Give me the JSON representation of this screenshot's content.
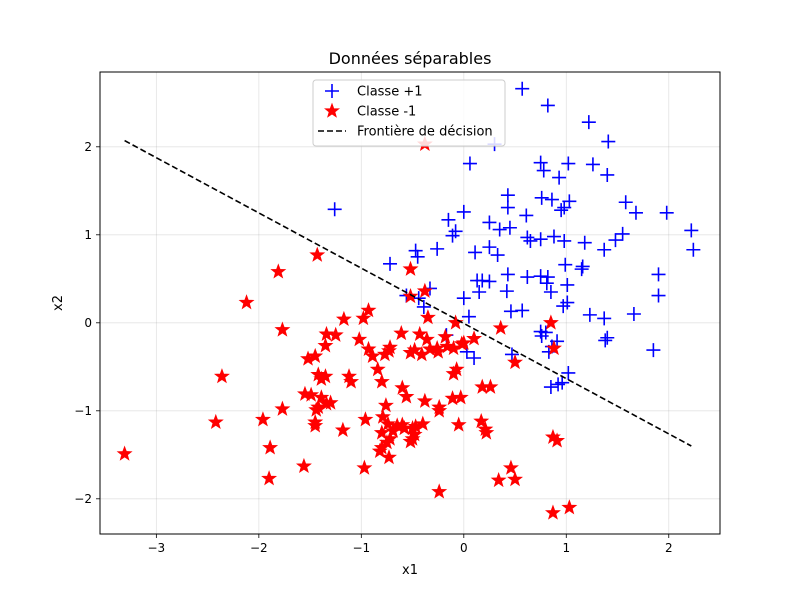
{
  "chart_data": {
    "type": "scatter",
    "title": "Données séparables",
    "xlabel": "x1",
    "ylabel": "x2",
    "xlim": [
      -3.55,
      2.5
    ],
    "ylim": [
      -2.4,
      2.85
    ],
    "grid": true,
    "legend_position": "top-center",
    "x_ticks": [
      -3,
      -2,
      -1,
      0,
      1,
      2
    ],
    "y_ticks": [
      -2,
      -1,
      0,
      1,
      2
    ],
    "x_tick_labels": [
      "−3",
      "−2",
      "−1",
      "0",
      "1",
      "2"
    ],
    "y_tick_labels": [
      "−2",
      "−1",
      "0",
      "1",
      "2"
    ],
    "series": [
      {
        "name": "Classe +1",
        "marker": "plus",
        "color": "#0000ff",
        "points": [
          [
            0.57,
            2.66
          ],
          [
            0.82,
            2.47
          ],
          [
            1.22,
            2.28
          ],
          [
            0.3,
            2.03
          ],
          [
            1.41,
            2.06
          ],
          [
            0.75,
            1.82
          ],
          [
            1.02,
            1.81
          ],
          [
            1.26,
            1.8
          ],
          [
            0.06,
            1.81
          ],
          [
            0.78,
            1.73
          ],
          [
            1.4,
            1.68
          ],
          [
            0.93,
            1.65
          ],
          [
            -1.26,
            1.29
          ],
          [
            0.43,
            1.45
          ],
          [
            0.76,
            1.42
          ],
          [
            0.86,
            1.4
          ],
          [
            1.03,
            1.38
          ],
          [
            1.58,
            1.37
          ],
          [
            0.43,
            1.31
          ],
          [
            0.95,
            1.28
          ],
          [
            0.0,
            1.26
          ],
          [
            1.68,
            1.25
          ],
          [
            1.98,
            1.25
          ],
          [
            0.61,
            1.22
          ],
          [
            0.98,
            1.31
          ],
          [
            -0.15,
            1.17
          ],
          [
            0.25,
            1.14
          ],
          [
            0.35,
            1.06
          ],
          [
            0.45,
            1.08
          ],
          [
            -0.08,
            1.04
          ],
          [
            2.22,
            1.05
          ],
          [
            -0.11,
            0.99
          ],
          [
            0.62,
            0.97
          ],
          [
            0.65,
            0.93
          ],
          [
            0.75,
            0.95
          ],
          [
            0.88,
            0.98
          ],
          [
            0.98,
            0.93
          ],
          [
            1.18,
            0.91
          ],
          [
            1.37,
            0.83
          ],
          [
            1.48,
            0.94
          ],
          [
            1.55,
            1.01
          ],
          [
            -0.26,
            0.84
          ],
          [
            -0.47,
            0.82
          ],
          [
            -0.45,
            0.75
          ],
          [
            0.11,
            0.8
          ],
          [
            0.25,
            0.86
          ],
          [
            0.33,
            0.77
          ],
          [
            -0.72,
            0.67
          ],
          [
            0.75,
            0.53
          ],
          [
            0.82,
            0.52
          ],
          [
            0.62,
            0.52
          ],
          [
            0.99,
            0.66
          ],
          [
            1.15,
            0.61
          ],
          [
            1.16,
            0.64
          ],
          [
            1.9,
            0.55
          ],
          [
            2.24,
            0.83
          ],
          [
            0.13,
            0.48
          ],
          [
            0.18,
            0.48
          ],
          [
            0.25,
            0.47
          ],
          [
            0.43,
            0.55
          ],
          [
            0.81,
            0.45
          ],
          [
            1.01,
            0.43
          ],
          [
            0.42,
            0.36
          ],
          [
            0.85,
            0.35
          ],
          [
            1.01,
            0.23
          ],
          [
            -0.56,
            0.31
          ],
          [
            -0.44,
            0.28
          ],
          [
            -0.33,
            0.39
          ],
          [
            -0.39,
            0.18
          ],
          [
            0.0,
            0.28
          ],
          [
            0.15,
            0.35
          ],
          [
            1.9,
            0.31
          ],
          [
            0.46,
            0.13
          ],
          [
            0.57,
            0.14
          ],
          [
            0.97,
            0.19
          ],
          [
            1.23,
            0.09
          ],
          [
            1.37,
            0.05
          ],
          [
            1.66,
            0.1
          ],
          [
            0.05,
            0.07
          ],
          [
            0.75,
            -0.1
          ],
          [
            0.8,
            -0.11
          ],
          [
            0.76,
            -0.15
          ],
          [
            0.91,
            -0.21
          ],
          [
            0.86,
            -0.27
          ],
          [
            1.4,
            -0.17
          ],
          [
            1.38,
            -0.2
          ],
          [
            -0.17,
            -0.14
          ],
          [
            0.03,
            -0.33
          ],
          [
            0.1,
            -0.4
          ],
          [
            0.47,
            -0.36
          ],
          [
            0.83,
            -0.33
          ],
          [
            1.85,
            -0.31
          ],
          [
            1.02,
            -0.57
          ],
          [
            0.96,
            -0.68
          ],
          [
            0.92,
            -0.7
          ],
          [
            0.85,
            -0.73
          ]
        ]
      },
      {
        "name": "Classe -1",
        "marker": "star",
        "color": "#ff0000",
        "points": [
          [
            -0.38,
            2.03
          ],
          [
            -1.43,
            0.77
          ],
          [
            -1.81,
            0.58
          ],
          [
            -0.52,
            0.61
          ],
          [
            -2.12,
            0.23
          ],
          [
            -0.52,
            0.3
          ],
          [
            -0.38,
            0.36
          ],
          [
            -0.35,
            0.06
          ],
          [
            -0.93,
            0.14
          ],
          [
            -1.17,
            0.04
          ],
          [
            -1.77,
            -0.08
          ],
          [
            -0.98,
            0.05
          ],
          [
            -0.08,
            0.0
          ],
          [
            0.36,
            -0.06
          ],
          [
            -1.34,
            -0.13
          ],
          [
            -1.25,
            -0.14
          ],
          [
            -1.02,
            -0.19
          ],
          [
            -0.61,
            -0.12
          ],
          [
            -0.43,
            -0.13
          ],
          [
            -0.36,
            -0.19
          ],
          [
            -0.18,
            -0.16
          ],
          [
            0.1,
            -0.18
          ],
          [
            -1.35,
            -0.26
          ],
          [
            -0.93,
            -0.3
          ],
          [
            -0.72,
            -0.28
          ],
          [
            -0.26,
            -0.29
          ],
          [
            -0.16,
            -0.27
          ],
          [
            0.0,
            -0.23
          ],
          [
            -1.52,
            -0.41
          ],
          [
            -1.45,
            -0.38
          ],
          [
            -0.89,
            -0.38
          ],
          [
            -0.73,
            -0.32
          ],
          [
            -0.77,
            -0.36
          ],
          [
            -0.48,
            -0.31
          ],
          [
            -0.52,
            -0.34
          ],
          [
            -0.41,
            -0.36
          ],
          [
            -0.33,
            -0.3
          ],
          [
            -0.25,
            -0.33
          ],
          [
            -0.1,
            -0.29
          ],
          [
            -0.02,
            -0.24
          ],
          [
            0.5,
            -0.45
          ],
          [
            0.88,
            -0.29
          ],
          [
            0.85,
            0.0
          ],
          [
            -2.36,
            -0.61
          ],
          [
            -1.42,
            -0.59
          ],
          [
            -1.39,
            -0.64
          ],
          [
            -1.35,
            -0.61
          ],
          [
            -1.12,
            -0.61
          ],
          [
            -1.1,
            -0.67
          ],
          [
            -0.84,
            -0.53
          ],
          [
            -0.8,
            -0.67
          ],
          [
            -0.6,
            -0.74
          ],
          [
            -0.1,
            -0.58
          ],
          [
            -0.07,
            -0.53
          ],
          [
            0.18,
            -0.73
          ],
          [
            0.26,
            -0.73
          ],
          [
            -1.49,
            -0.82
          ],
          [
            -1.39,
            -0.85
          ],
          [
            -1.42,
            -0.96
          ],
          [
            -1.3,
            -0.91
          ],
          [
            -1.34,
            -0.92
          ],
          [
            -1.55,
            -0.81
          ],
          [
            -1.77,
            -0.98
          ],
          [
            -1.44,
            -0.99
          ],
          [
            -0.76,
            -0.94
          ],
          [
            -0.56,
            -0.84
          ],
          [
            -0.38,
            -0.89
          ],
          [
            -0.24,
            -0.96
          ],
          [
            -0.24,
            -1.0
          ],
          [
            -0.11,
            -0.86
          ],
          [
            -0.03,
            -0.85
          ],
          [
            -1.96,
            -1.1
          ],
          [
            -1.45,
            -1.17
          ],
          [
            -1.45,
            -1.13
          ],
          [
            -1.18,
            -1.22
          ],
          [
            -0.96,
            -1.1
          ],
          [
            -0.79,
            -1.07
          ],
          [
            -0.74,
            -1.15
          ],
          [
            -0.69,
            -1.23
          ],
          [
            -0.65,
            -1.17
          ],
          [
            -0.6,
            -1.16
          ],
          [
            -0.58,
            -1.2
          ],
          [
            -0.5,
            -1.2
          ],
          [
            -0.48,
            -1.27
          ],
          [
            -0.47,
            -1.18
          ],
          [
            -0.4,
            -1.15
          ],
          [
            -0.5,
            -1.32
          ],
          [
            -0.05,
            -1.16
          ],
          [
            0.17,
            -1.12
          ],
          [
            0.22,
            -1.25
          ],
          [
            0.21,
            -1.21
          ],
          [
            -2.42,
            -1.13
          ],
          [
            -1.89,
            -1.42
          ],
          [
            -0.8,
            -1.42
          ],
          [
            -0.8,
            -1.25
          ],
          [
            -0.75,
            -1.36
          ],
          [
            -0.72,
            -1.32
          ],
          [
            -0.73,
            -1.53
          ],
          [
            -0.82,
            -1.46
          ],
          [
            -0.52,
            -1.35
          ],
          [
            -3.31,
            -1.49
          ],
          [
            -1.56,
            -1.63
          ],
          [
            -0.97,
            -1.65
          ],
          [
            0.87,
            -1.3
          ],
          [
            0.91,
            -1.34
          ],
          [
            -1.9,
            -1.77
          ],
          [
            0.46,
            -1.65
          ],
          [
            0.34,
            -1.79
          ],
          [
            0.5,
            -1.78
          ],
          [
            -0.24,
            -1.92
          ],
          [
            0.87,
            -2.16
          ],
          [
            1.03,
            -2.1
          ]
        ]
      },
      {
        "name": "Frontière de décision",
        "marker": "dashed-line",
        "color": "#000000",
        "points": [
          [
            -3.31,
            2.07
          ],
          [
            2.22,
            -1.4
          ]
        ]
      }
    ]
  }
}
